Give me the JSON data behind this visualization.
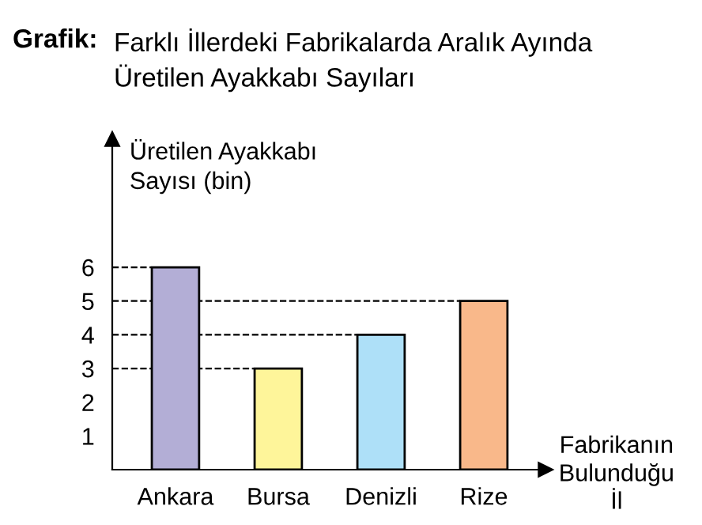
{
  "chart_data": {
    "type": "bar",
    "title": "Farklı İllerdeki Fabrikalarda Aralık Ayında\nÜretilen Ayakkabı Sayıları",
    "annotations": [
      "Grafik:"
    ],
    "ylabel": "Üretilen Ayakkabı\nSayısı (bin)",
    "xlabel": "Fabrikanın\nBulunduğu\nİl",
    "categories": [
      "Ankara",
      "Bursa",
      "Denizli",
      "Rize"
    ],
    "values": [
      6,
      3,
      4,
      5
    ],
    "colors": [
      "#b3aed6",
      "#fef59a",
      "#aee0f8",
      "#f9b88a"
    ],
    "ylim": [
      0,
      9.8
    ],
    "yticks": [
      1,
      2,
      3,
      4,
      5,
      6
    ],
    "grid": false,
    "ref_lines": [
      {
        "axis": "y",
        "value": 6,
        "line_style": "dashed"
      },
      {
        "axis": "y",
        "value": 5,
        "line_style": "dashed"
      },
      {
        "axis": "y",
        "value": 4,
        "line_style": "dashed"
      },
      {
        "axis": "y",
        "value": 3,
        "line_style": "dashed"
      }
    ]
  }
}
